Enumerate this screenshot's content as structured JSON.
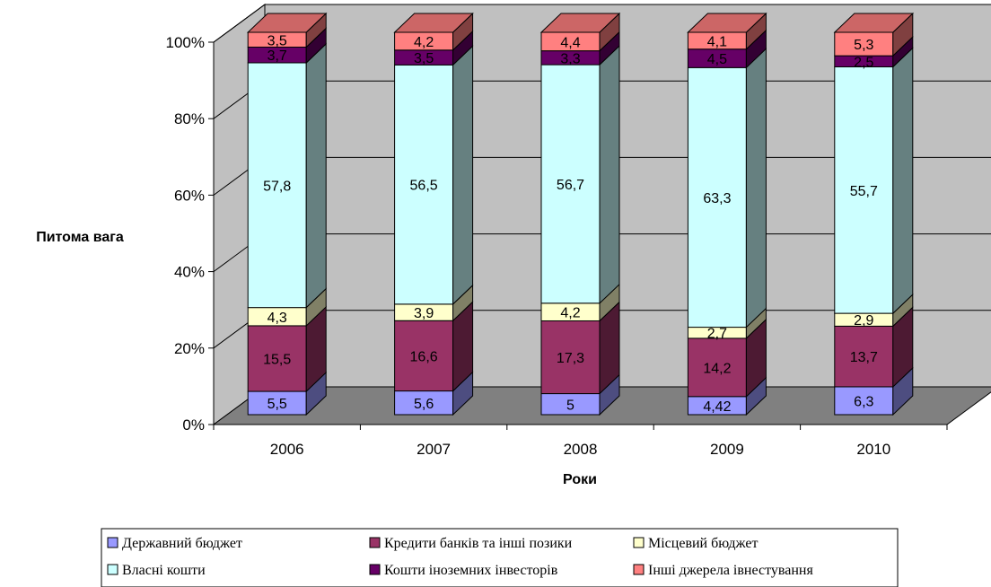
{
  "chart_data": {
    "type": "bar",
    "stacked": "percent",
    "three_d": true,
    "categories": [
      "2006",
      "2007",
      "2008",
      "2009",
      "2010"
    ],
    "series": [
      {
        "name": "Державний бюджет",
        "color": "#9999FF",
        "values": [
          5.5,
          5.6,
          5,
          4.42,
          6.3
        ],
        "labels": [
          "5,5",
          "5,6",
          "5",
          "4,42",
          "6,3"
        ]
      },
      {
        "name": "Кредити банків та інші позики",
        "color": "#993366",
        "values": [
          15.5,
          16.6,
          17.3,
          14.2,
          13.7
        ],
        "labels": [
          "15,5",
          "16,6",
          "17,3",
          "14,2",
          "13,7"
        ]
      },
      {
        "name": "Місцевий бюджет",
        "color": "#FFFFCC",
        "values": [
          4.3,
          3.9,
          4.2,
          2.7,
          2.9
        ],
        "labels": [
          "4,3",
          "3,9",
          "4,2",
          "2,7",
          "2,9"
        ]
      },
      {
        "name": "Власні кошти",
        "color": "#CCFFFF",
        "values": [
          57.8,
          56.5,
          56.7,
          63.3,
          55.7
        ],
        "labels": [
          "57,8",
          "56,5",
          "56,7",
          "63,3",
          "55,7"
        ]
      },
      {
        "name": "Кошти іноземних інвесторів",
        "color": "#660066",
        "values": [
          3.7,
          3.5,
          3.3,
          4.5,
          2.5
        ],
        "labels": [
          "3,7",
          "3,5",
          "3,3",
          "4,5",
          "2,5"
        ]
      },
      {
        "name": "Інші джерела івнестування",
        "color": "#FF8080",
        "values": [
          3.5,
          4.2,
          4.4,
          4.1,
          5.3
        ],
        "labels": [
          "3,5",
          "4,2",
          "4,4",
          "4,1",
          "5,3"
        ]
      }
    ],
    "ylim": [
      0,
      100
    ],
    "y_ticks": [
      "0%",
      "20%",
      "40%",
      "60%",
      "80%",
      "100%"
    ],
    "xlabel": "Роки",
    "ylabel": "Питома вага",
    "legend_position": "bottom",
    "grid": true,
    "wall_color": "#C0C0C0",
    "floor_color": "#808080"
  }
}
